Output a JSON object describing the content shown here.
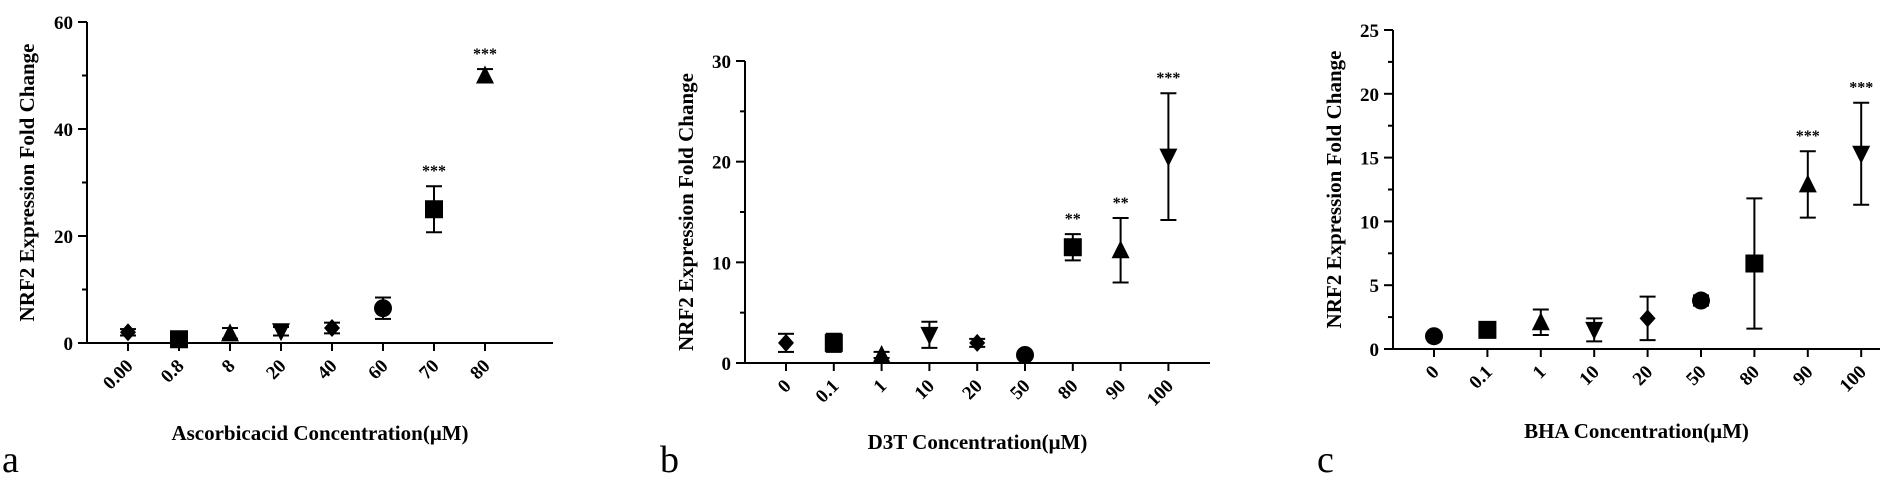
{
  "chart_data": [
    {
      "type": "scatter",
      "panel_label": "a",
      "xlabel": "Ascorbicacid Concentration(μM)",
      "ylabel": "NRF2 Expression Fold Change",
      "categories": [
        "0.00",
        "0.8",
        "8",
        "20",
        "40",
        "60",
        "70",
        "80"
      ],
      "yticks": [
        "0",
        "20",
        "40",
        "60"
      ],
      "ylim": [
        0,
        60
      ],
      "series": [
        {
          "markers": [
            "diamond",
            "square",
            "triangle",
            "triangle-down",
            "diamond",
            "circle",
            "square",
            "triangle"
          ],
          "values": [
            2.0,
            0.7,
            1.8,
            2.2,
            2.8,
            6.5,
            25.0,
            50.0
          ],
          "errors": [
            0.6,
            0.6,
            1.0,
            0.8,
            1.0,
            2.0,
            4.3,
            1.2
          ]
        }
      ],
      "significance": [
        "",
        "",
        "",
        "",
        "",
        "",
        "***",
        "***"
      ]
    },
    {
      "type": "scatter",
      "panel_label": "b",
      "xlabel": "D3T Concentration(μM)",
      "ylabel": "NRF2 Expression Fold Change",
      "categories": [
        "0",
        "0.1",
        "1",
        "10",
        "20",
        "50",
        "80",
        "90",
        "100"
      ],
      "yticks": [
        "0",
        "10",
        "20",
        "30"
      ],
      "ylim": [
        0,
        30
      ],
      "series": [
        {
          "markers": [
            "diamond",
            "square",
            "triangle",
            "triangle-down",
            "diamond",
            "circle",
            "square",
            "triangle",
            "triangle-down"
          ],
          "values": [
            2.0,
            2.0,
            0.8,
            2.8,
            2.0,
            0.8,
            11.5,
            11.2,
            20.5
          ],
          "errors": [
            0.9,
            0.9,
            0.3,
            1.3,
            0.4,
            0.2,
            1.3,
            3.2,
            6.3
          ]
        }
      ],
      "significance": [
        "",
        "",
        "",
        "",
        "",
        "",
        "**",
        "**",
        "***"
      ]
    },
    {
      "type": "scatter",
      "panel_label": "c",
      "xlabel": "BHA Concentration(μM)",
      "ylabel": "NRF2 Expression Fold Change",
      "categories": [
        "0",
        "0.1",
        "1",
        "10",
        "20",
        "50",
        "80",
        "90",
        "100"
      ],
      "yticks": [
        "0",
        "5",
        "10",
        "15",
        "20",
        "25"
      ],
      "ylim": [
        0,
        25
      ],
      "series": [
        {
          "markers": [
            "circle",
            "square",
            "triangle",
            "triangle-down",
            "diamond",
            "circle",
            "square",
            "triangle",
            "triangle-down"
          ],
          "values": [
            1.0,
            1.5,
            2.1,
            1.5,
            2.4,
            3.8,
            6.7,
            12.9,
            15.3
          ],
          "errors": [
            0.2,
            0.6,
            1.0,
            0.9,
            1.7,
            0.4,
            5.1,
            2.6,
            4.0
          ]
        }
      ],
      "significance": [
        "",
        "",
        "",
        "",
        "",
        "",
        "",
        "***",
        "***"
      ]
    }
  ]
}
